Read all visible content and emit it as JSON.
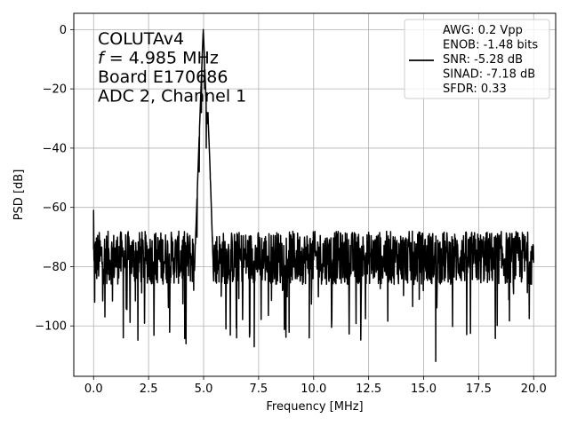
{
  "chart_data": {
    "type": "line",
    "xlabel": "Frequency [MHz]",
    "ylabel": "PSD [dB]",
    "xlim": [
      -0.9,
      21.0
    ],
    "ylim": [
      -117,
      5.5
    ],
    "xticks": [
      0.0,
      2.5,
      5.0,
      7.5,
      10.0,
      12.5,
      15.0,
      17.5,
      20.0
    ],
    "xtick_labels": [
      "0.0",
      "2.5",
      "5.0",
      "7.5",
      "10.0",
      "12.5",
      "15.0",
      "17.5",
      "20.0"
    ],
    "yticks": [
      0,
      -20,
      -40,
      -60,
      -80,
      -100
    ],
    "ytick_labels": [
      "0",
      "−20",
      "−40",
      "−60",
      "−80",
      "−100"
    ],
    "grid": true,
    "legend_position": "top-right",
    "annotation_position": "top-left",
    "annotation_lines": [
      "COLUTAv4",
      "f = 4.985 MHz",
      "Board E170686",
      "ADC 2, Channel 1"
    ],
    "legend_lines": [
      "AWG: 0.2 Vpp",
      "ENOB: -1.48 bits",
      "SNR: -5.28 dB",
      "SINAD: -7.18 dB",
      "SFDR: 0.33"
    ],
    "series": [
      {
        "color": "#000000",
        "signal_frequency": 4.985,
        "peak_db": 0,
        "noise_floor_db": -77,
        "x_range": [
          0,
          20
        ],
        "x": [
          0.0,
          0.02,
          0.05,
          0.1,
          0.2,
          1.35,
          4.2,
          4.55,
          4.7,
          4.8,
          4.9,
          4.985,
          5.05,
          5.12,
          5.2,
          5.3,
          5.4,
          5.55,
          5.8,
          6.5,
          7.3,
          9.8,
          15.55,
          20.0
        ],
        "y": [
          -61,
          -78,
          -92,
          -72,
          -78,
          -104,
          -106,
          -88,
          -70,
          -48,
          -28,
          0,
          -20,
          -40,
          -28,
          -50,
          -70,
          -85,
          -90,
          -104,
          -107,
          -104,
          -112,
          -78
        ]
      }
    ]
  }
}
